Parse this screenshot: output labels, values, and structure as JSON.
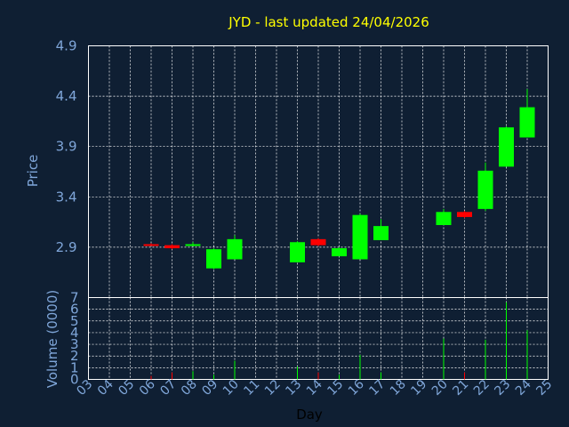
{
  "chart_data": {
    "type": "candlestick",
    "title": "JYD - last updated 24/04/2026",
    "xlabel": "Day",
    "price_panel": {
      "ylabel": "Price",
      "ylim": [
        2.4,
        4.9
      ],
      "y_ticks": [
        "2.9",
        "3.4",
        "3.9",
        "4.4",
        "4.9"
      ]
    },
    "volume_panel": {
      "ylabel": "Volume (0000)",
      "ylim": [
        0,
        7
      ],
      "y_ticks": [
        "0",
        "1",
        "2",
        "3",
        "4",
        "5",
        "6",
        "7"
      ]
    },
    "x_ticks": [
      "03",
      "04",
      "05",
      "06",
      "07",
      "08",
      "09",
      "10",
      "11",
      "12",
      "13",
      "14",
      "15",
      "16",
      "17",
      "18",
      "19",
      "20",
      "21",
      "22",
      "23",
      "24",
      "25"
    ],
    "candles": [
      {
        "day": "06",
        "open": 2.93,
        "high": 2.94,
        "low": 2.92,
        "close": 2.92,
        "volume": 0.3
      },
      {
        "day": "07",
        "open": 2.92,
        "high": 2.93,
        "low": 2.88,
        "close": 2.89,
        "volume": 0.6
      },
      {
        "day": "08",
        "open": 2.92,
        "high": 2.95,
        "low": 2.91,
        "close": 2.93,
        "volume": 0.7
      },
      {
        "day": "09",
        "open": 2.69,
        "high": 2.89,
        "low": 2.68,
        "close": 2.88,
        "volume": 0.4
      },
      {
        "day": "10",
        "open": 2.78,
        "high": 3.02,
        "low": 2.78,
        "close": 2.98,
        "volume": 1.6
      },
      {
        "day": "13",
        "open": 2.75,
        "high": 2.96,
        "low": 2.75,
        "close": 2.95,
        "volume": 1.1
      },
      {
        "day": "14",
        "open": 2.98,
        "high": 2.99,
        "low": 2.91,
        "close": 2.92,
        "volume": 0.6
      },
      {
        "day": "15",
        "open": 2.81,
        "high": 2.9,
        "low": 2.81,
        "close": 2.89,
        "volume": 0.4
      },
      {
        "day": "16",
        "open": 2.78,
        "high": 3.23,
        "low": 2.78,
        "close": 3.22,
        "volume": 2.1
      },
      {
        "day": "17",
        "open": 2.97,
        "high": 3.18,
        "low": 2.97,
        "close": 3.11,
        "volume": 0.6
      },
      {
        "day": "20",
        "open": 3.12,
        "high": 3.28,
        "low": 3.12,
        "close": 3.25,
        "volume": 3.5
      },
      {
        "day": "21",
        "open": 3.25,
        "high": 3.26,
        "low": 3.19,
        "close": 3.2,
        "volume": 0.6
      },
      {
        "day": "22",
        "open": 3.28,
        "high": 3.74,
        "low": 3.26,
        "close": 3.66,
        "volume": 3.4
      },
      {
        "day": "23",
        "open": 3.7,
        "high": 4.1,
        "low": 3.7,
        "close": 4.09,
        "volume": 6.6
      },
      {
        "day": "24",
        "open": 3.99,
        "high": 4.47,
        "low": 3.99,
        "close": 4.29,
        "volume": 4.2
      }
    ],
    "grid": true,
    "colors": {
      "background": "#0f1f33",
      "title": "#ffff00",
      "axis_text": "#7fa6d9",
      "xlabel": "#000000",
      "grid": "#ffffff",
      "up": "#00ff00",
      "down": "#ff0000"
    }
  }
}
